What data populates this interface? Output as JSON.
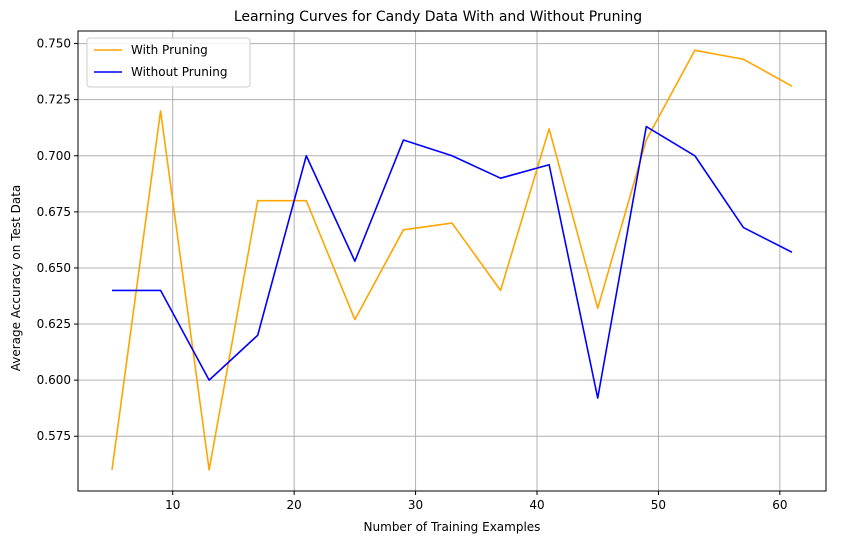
{
  "chart_data": {
    "type": "line",
    "title": "Learning Curves for Candy Data With and Without Pruning",
    "xlabel": "Number of Training Examples",
    "ylabel": "Average Accuracy on Test Data",
    "xlim": [
      2.2,
      63.8
    ],
    "ylim": [
      0.5506,
      0.7556
    ],
    "grid": true,
    "legend_position": "top-left",
    "x": [
      5,
      9,
      13,
      17,
      21,
      25,
      29,
      33,
      37,
      41,
      45,
      49,
      53,
      57,
      61
    ],
    "x_ticks": [
      10,
      20,
      30,
      40,
      50,
      60
    ],
    "x_tick_labels": [
      "10",
      "20",
      "30",
      "40",
      "50",
      "60"
    ],
    "y_ticks": [
      0.575,
      0.6,
      0.625,
      0.65,
      0.675,
      0.7,
      0.725,
      0.75
    ],
    "y_tick_labels": [
      "0.575",
      "0.600",
      "0.625",
      "0.650",
      "0.675",
      "0.700",
      "0.725",
      "0.750"
    ],
    "series": [
      {
        "name": "With Pruning",
        "color": "#ffa500",
        "values": [
          0.56,
          0.72,
          0.56,
          0.68,
          0.68,
          0.627,
          0.667,
          0.67,
          0.64,
          0.712,
          0.632,
          0.707,
          0.747,
          0.743,
          0.731
        ]
      },
      {
        "name": "Without Pruning",
        "color": "#0000ff",
        "values": [
          0.64,
          0.64,
          0.6,
          0.62,
          0.7,
          0.653,
          0.707,
          0.7,
          0.69,
          0.696,
          0.592,
          0.713,
          0.7,
          0.668,
          0.657
        ]
      }
    ]
  }
}
